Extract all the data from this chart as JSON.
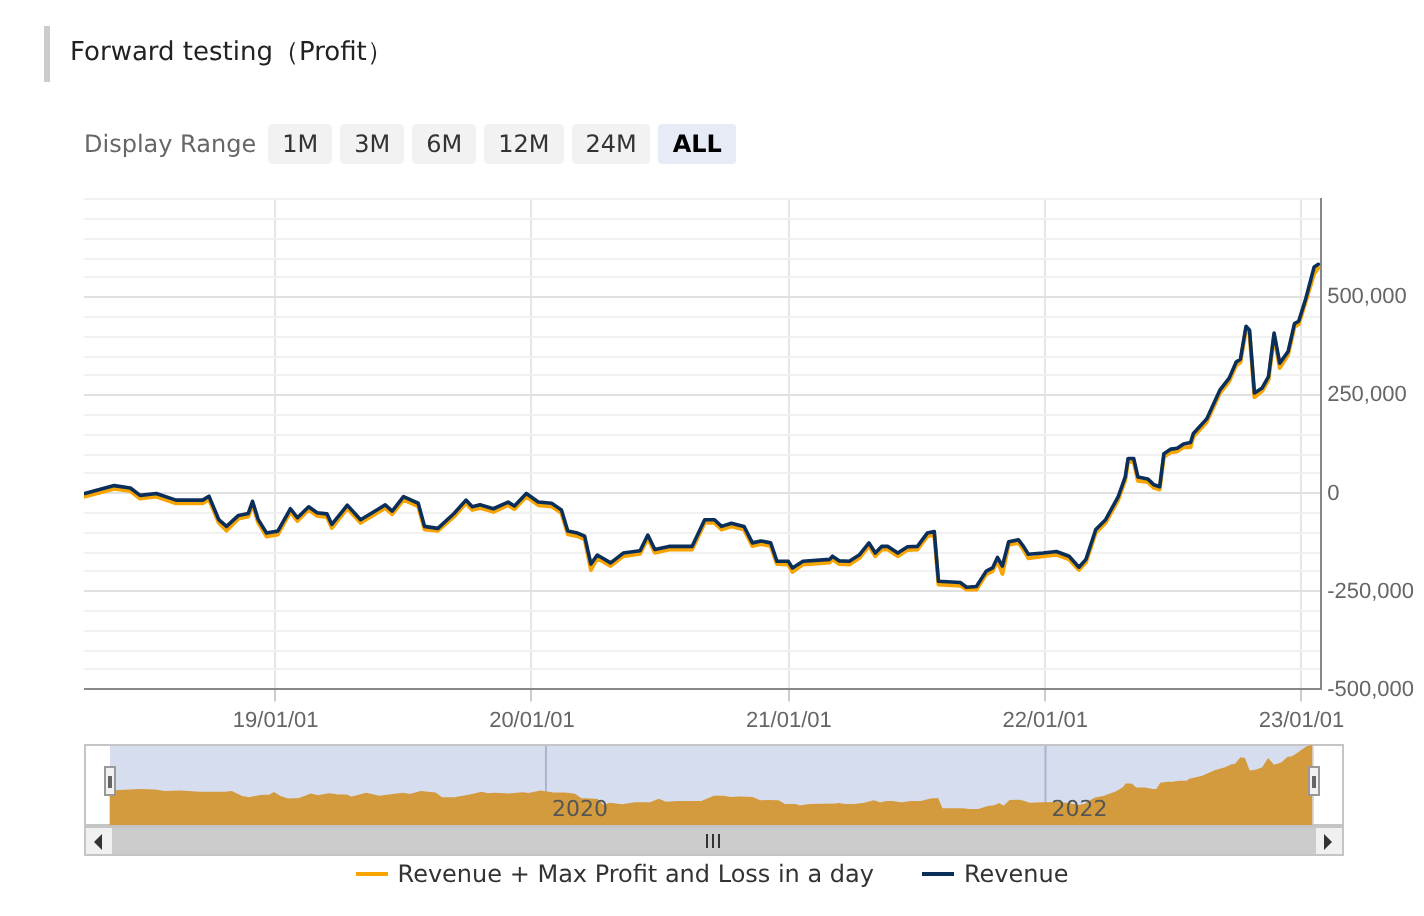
{
  "chart_data": {
    "type": "line",
    "title": "Forward testing（Profit）",
    "annotations": [
      "Display Range",
      "1M",
      "3M",
      "6M",
      "12M",
      "24M",
      "ALL",
      "2020",
      "2022"
    ],
    "x": [
      "2018-04-04",
      "2018-05-16",
      "2018-06-08",
      "2018-06-22",
      "2018-07-15",
      "2018-08-12",
      "2018-09-19",
      "2018-09-28",
      "2018-10-12",
      "2018-10-23",
      "2018-11-09",
      "2018-11-23",
      "2018-11-29",
      "2018-12-07",
      "2018-12-19",
      "2019-01-04",
      "2019-01-22",
      "2019-02-01",
      "2019-02-17",
      "2019-03-01",
      "2019-03-15",
      "2019-03-22",
      "2019-04-13",
      "2019-05-02",
      "2019-05-28",
      "2019-06-06",
      "2019-06-16",
      "2019-07-02",
      "2019-07-23",
      "2019-08-01",
      "2019-08-20",
      "2019-09-12",
      "2019-09-29",
      "2019-10-08",
      "2019-10-19",
      "2019-11-07",
      "2019-11-28",
      "2019-12-07",
      "2019-12-24",
      "2020-01-10",
      "2020-01-29",
      "2020-02-12",
      "2020-02-21",
      "2020-03-06",
      "2020-03-16",
      "2020-03-25",
      "2020-04-03",
      "2020-04-22",
      "2020-05-10",
      "2020-06-03",
      "2020-06-14",
      "2020-06-24",
      "2020-07-14",
      "2020-08-16",
      "2020-09-03",
      "2020-09-17",
      "2020-09-27",
      "2020-10-11",
      "2020-10-29",
      "2020-11-10",
      "2020-11-22",
      "2020-12-06",
      "2020-12-15",
      "2020-12-31",
      "2021-01-06",
      "2021-01-21",
      "2021-02-28",
      "2021-03-04",
      "2021-03-14",
      "2021-03-28",
      "2021-04-11",
      "2021-04-25",
      "2021-05-04",
      "2021-05-13",
      "2021-05-22",
      "2021-06-05",
      "2021-06-19",
      "2021-07-03",
      "2021-07-17",
      "2021-07-27",
      "2021-08-02",
      "2021-09-02",
      "2021-09-11",
      "2021-09-25",
      "2021-10-09",
      "2021-10-18",
      "2021-10-25",
      "2021-11-01",
      "2021-11-10",
      "2021-11-24",
      "2021-12-01",
      "2021-12-08",
      "2021-12-29",
      "2022-01-17",
      "2022-02-04",
      "2022-02-18",
      "2022-02-28",
      "2022-03-14",
      "2022-03-28",
      "2022-04-15",
      "2022-04-25",
      "2022-04-29",
      "2022-05-07",
      "2022-05-13",
      "2022-05-27",
      "2022-06-05",
      "2022-06-13",
      "2022-06-19",
      "2022-06-29",
      "2022-07-08",
      "2022-07-17",
      "2022-07-27",
      "2022-07-31",
      "2022-08-19",
      "2022-09-07",
      "2022-09-20",
      "2022-09-30",
      "2022-10-06",
      "2022-10-14",
      "2022-10-19",
      "2022-10-26",
      "2022-11-06",
      "2022-11-15",
      "2022-11-23",
      "2022-12-01",
      "2022-12-13",
      "2022-12-22",
      "2022-12-28",
      "2023-01-07",
      "2023-01-19",
      "2023-01-25"
    ],
    "series": [
      {
        "name": "Revenue + Max Profit and Loss in a day",
        "color": "#f7a400",
        "values": [
          -8000,
          12000,
          6000,
          -13000,
          -8000,
          -25000,
          -25000,
          -15000,
          -75000,
          -95000,
          -64000,
          -59000,
          -28000,
          -74000,
          -110000,
          -105000,
          -47000,
          -70000,
          -42000,
          -57000,
          -60000,
          -88000,
          -38000,
          -75000,
          -47000,
          -37000,
          -53000,
          -16000,
          -33000,
          -92000,
          -95000,
          -59000,
          -25000,
          -42000,
          -37000,
          -47000,
          -30000,
          -40000,
          -8000,
          -30000,
          -33000,
          -50000,
          -104000,
          -109000,
          -117000,
          -195000,
          -165000,
          -185000,
          -160000,
          -154000,
          -114000,
          -151000,
          -143000,
          -143000,
          -75000,
          -75000,
          -92000,
          -84000,
          -92000,
          -134000,
          -129000,
          -134000,
          -180000,
          -181000,
          -200000,
          -181000,
          -176000,
          -168000,
          -180000,
          -181000,
          -165000,
          -134000,
          -160000,
          -143000,
          -143000,
          -160000,
          -144000,
          -143000,
          -109000,
          -105000,
          -232000,
          -235000,
          -245000,
          -245000,
          -206000,
          -198000,
          -171000,
          -205000,
          -131000,
          -126000,
          -143000,
          -165000,
          -160000,
          -156000,
          -168000,
          -195000,
          -176000,
          -100000,
          -75000,
          -16000,
          34000,
          81000,
          81000,
          32000,
          29000,
          14000,
          10000,
          93000,
          105000,
          107000,
          118000,
          118000,
          145000,
          182000,
          256000,
          286000,
          327000,
          334000,
          418000,
          408000,
          245000,
          261000,
          290000,
          401000,
          320000,
          354000,
          425000,
          431000,
          488000,
          560000,
          575000
        ]
      },
      {
        "name": "Revenue",
        "color": "#0b2f5b",
        "values": [
          0,
          20000,
          14000,
          -5000,
          0,
          -17000,
          -17000,
          -7000,
          -67000,
          -84000,
          -56000,
          -51000,
          -20000,
          -66000,
          -101000,
          -96000,
          -39000,
          -62000,
          -34000,
          -49000,
          -52000,
          -79000,
          -30000,
          -67000,
          -39000,
          -29000,
          -45000,
          -8000,
          -25000,
          -84000,
          -89000,
          -51000,
          -17000,
          -34000,
          -29000,
          -39000,
          -22000,
          -32000,
          0,
          -22000,
          -25000,
          -42000,
          -96000,
          -101000,
          -109000,
          -180000,
          -157000,
          -177000,
          -152000,
          -146000,
          -106000,
          -143000,
          -135000,
          -135000,
          -67000,
          -67000,
          -84000,
          -76000,
          -84000,
          -126000,
          -121000,
          -126000,
          -173000,
          -173000,
          -190000,
          -173000,
          -168000,
          -160000,
          -172000,
          -173000,
          -157000,
          -126000,
          -152000,
          -135000,
          -135000,
          -152000,
          -136000,
          -135000,
          -101000,
          -97000,
          -224000,
          -227000,
          -239000,
          -237000,
          -198000,
          -190000,
          -163000,
          -185000,
          -123000,
          -118000,
          -135000,
          -155000,
          -152000,
          -148000,
          -160000,
          -188000,
          -168000,
          -92000,
          -67000,
          -8000,
          42000,
          89000,
          89000,
          42000,
          37000,
          22000,
          17000,
          101000,
          113000,
          115000,
          126000,
          130000,
          153000,
          190000,
          264000,
          294000,
          335000,
          342000,
          426000,
          416000,
          256000,
          269000,
          298000,
          409000,
          332000,
          362000,
          433000,
          439000,
          496000,
          577000,
          584000
        ]
      }
    ],
    "xlim": [
      "2018-04-03",
      "2023-01-29"
    ],
    "xticks": [
      {
        "value": "2019-01-01",
        "label": "19/01/01"
      },
      {
        "value": "2020-01-01",
        "label": "20/01/01"
      },
      {
        "value": "2021-01-01",
        "label": "21/01/01"
      },
      {
        "value": "2022-01-01",
        "label": "22/01/01"
      },
      {
        "value": "2023-01-01",
        "label": "23/01/01"
      }
    ],
    "ylim": [
      -500000,
      750000
    ],
    "yticks": [
      {
        "value": -500000,
        "label": "-500,000"
      },
      {
        "value": -450000,
        "label": null
      },
      {
        "value": -400000,
        "label": null
      },
      {
        "value": -350000,
        "label": null
      },
      {
        "value": -300000,
        "label": null
      },
      {
        "value": -250000,
        "label": "-250,000"
      },
      {
        "value": -200000,
        "label": null
      },
      {
        "value": -150000,
        "label": null
      },
      {
        "value": -100000,
        "label": null
      },
      {
        "value": -50000,
        "label": null
      },
      0,
      {
        "value": 50000,
        "label": null
      },
      {
        "value": 100000,
        "label": null
      },
      {
        "value": 150000,
        "label": null
      },
      {
        "value": 200000,
        "label": null
      },
      {
        "value": 250000,
        "label": "250,000"
      },
      {
        "value": 300000,
        "label": null
      },
      {
        "value": 350000,
        "label": null
      },
      {
        "value": 400000,
        "label": null
      },
      {
        "value": 450000,
        "label": null
      },
      {
        "value": 500000,
        "label": "500,000"
      },
      {
        "value": 550000,
        "label": null
      },
      {
        "value": 600000,
        "label": null
      },
      {
        "value": 650000,
        "label": null
      },
      {
        "value": 700000,
        "label": null
      },
      {
        "value": 750000,
        "label": null
      }
    ],
    "grid": true,
    "legend": "bottom",
    "marker": "none"
  }
}
